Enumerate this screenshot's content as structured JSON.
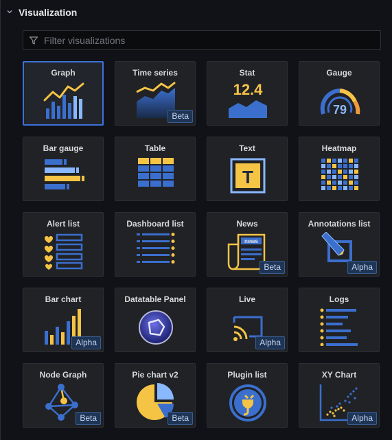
{
  "section": {
    "title": "Visualization"
  },
  "search": {
    "placeholder": "Filter visualizations"
  },
  "colors": {
    "accent": "#3d71d9",
    "yellow": "#f6c445",
    "blue": "#3b6fce",
    "lightblue": "#8ab8ff"
  },
  "cards": [
    {
      "label": "Graph",
      "badge": "",
      "icon": "graph-icon",
      "selected": true
    },
    {
      "label": "Time series",
      "badge": "Beta",
      "icon": "time-series-icon"
    },
    {
      "label": "Stat",
      "badge": "",
      "icon": "stat-icon",
      "value": "12.4"
    },
    {
      "label": "Gauge",
      "badge": "",
      "icon": "gauge-icon",
      "value": "79"
    },
    {
      "label": "Bar gauge",
      "badge": "",
      "icon": "bar-gauge-icon"
    },
    {
      "label": "Table",
      "badge": "",
      "icon": "table-icon"
    },
    {
      "label": "Text",
      "badge": "",
      "icon": "text-icon",
      "value": "T"
    },
    {
      "label": "Heatmap",
      "badge": "",
      "icon": "heatmap-icon"
    },
    {
      "label": "Alert list",
      "badge": "",
      "icon": "alert-list-icon"
    },
    {
      "label": "Dashboard list",
      "badge": "",
      "icon": "dashboard-list-icon"
    },
    {
      "label": "News",
      "badge": "Beta",
      "icon": "news-icon",
      "value": "news"
    },
    {
      "label": "Annotations list",
      "badge": "Alpha",
      "icon": "annotations-list-icon"
    },
    {
      "label": "Bar chart",
      "badge": "Alpha",
      "icon": "bar-chart-icon"
    },
    {
      "label": "Datatable Panel",
      "badge": "",
      "icon": "datatable-panel-icon"
    },
    {
      "label": "Live",
      "badge": "Alpha",
      "icon": "live-icon"
    },
    {
      "label": "Logs",
      "badge": "",
      "icon": "logs-icon"
    },
    {
      "label": "Node Graph",
      "badge": "Beta",
      "icon": "node-graph-icon"
    },
    {
      "label": "Pie chart v2",
      "badge": "Beta",
      "icon": "pie-chart-icon"
    },
    {
      "label": "Plugin list",
      "badge": "",
      "icon": "plugin-list-icon"
    },
    {
      "label": "XY Chart",
      "badge": "Alpha",
      "icon": "xy-chart-icon"
    }
  ]
}
